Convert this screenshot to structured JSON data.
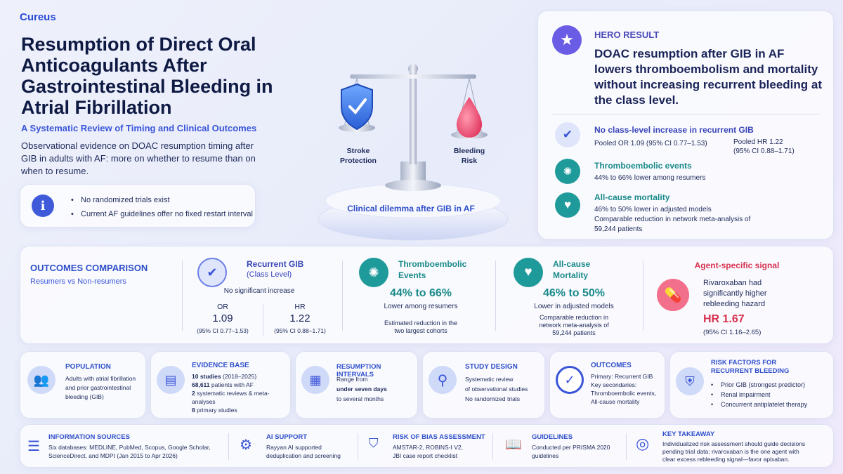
{
  "brand": "Cureus",
  "title": "Resumption of Direct Oral Anticoagulants After Gastrointestinal Bleeding in Atrial Fibrillation",
  "subtitle": "A Systematic Review of Timing and Clinical Outcomes",
  "intro": "Observational evidence on DOAC resumption timing after GIB in adults with AF: more on whether to resume than on when to resume.",
  "info_box": {
    "icon": "info-icon",
    "items": [
      "No randomized trials exist",
      "Current AF guidelines offer no fixed restart interval"
    ]
  },
  "scale": {
    "left_label_1": "Stroke",
    "left_label_2": "Protection",
    "right_label_1": "Bleeding",
    "right_label_2": "Risk",
    "caption": "Clinical dilemma after GIB in AF"
  },
  "hero": {
    "heading": "HERO RESULT",
    "statement": "DOAC resumption after GIB in AF lowers thromboembolism and mortality without increasing recurrent bleeding at the class level.",
    "items": [
      {
        "icon": "shield-check-icon",
        "title": "No class-level increase in recurrent GIB",
        "line1": "Pooled OR 1.09 (95% CI 0.77–1.53)",
        "aside1": "Pooled HR 1.22",
        "aside2": "(95% CI 0.88–1.71)"
      },
      {
        "icon": "brain-icon",
        "title": "Thromboembolic events",
        "line1": "44% to 66% lower among resumers"
      },
      {
        "icon": "heart-icon",
        "title": "All-cause mortality",
        "line1": "46% to 50% lower in adjusted models",
        "line2": "Comparable reduction in network meta-analysis of",
        "line3": "59,244 patients"
      }
    ]
  },
  "outcomes": {
    "heading": "OUTCOMES COMPARISON",
    "subheading": "Resumers vs Non-resumers",
    "recurrent": {
      "title1": "Recurrent GIB",
      "title2": "(Class Level)",
      "note": "No significant increase",
      "or_label": "OR",
      "or_value": "1.09",
      "or_ci": "(95% CI 0.77–1.53)",
      "hr_label": "HR",
      "hr_value": "1.22",
      "hr_ci": "(95% CI 0.88–1.71)"
    },
    "thrombo": {
      "title1": "Thromboembolic",
      "title2": "Events",
      "value": "44% to 66%",
      "note": "Lower among resumers",
      "sub1": "Estimated reduction in the",
      "sub2": "two largest cohorts"
    },
    "mortality": {
      "title1": "All-cause",
      "title2": "Mortality",
      "value": "46% to 50%",
      "note": "Lower in adjusted models",
      "sub1": "Comparable reduction in",
      "sub2": "network meta-analysis of",
      "sub3": "59,244 patients"
    },
    "agent": {
      "title": "Agent-specific signal",
      "text1": "Rivaroxaban had",
      "text2": "significantly higher",
      "text3": "rebleeding hazard",
      "value": "HR 1.67",
      "ci": "(95% CI 1.16–2.65)"
    }
  },
  "row3": {
    "population": {
      "title": "POPULATION",
      "l1": "Adults with atrial fibrillation",
      "l2": "and prior gastrointestinal",
      "l3": "bleeding (GIB)"
    },
    "evidence": {
      "title": "EVIDENCE BASE",
      "b1": "10 studies",
      "t1": " (2018–2025)",
      "b2": "68,611",
      "t2": " patients with AF",
      "b3": "2",
      "t3": " systematic reviews & meta-analyses",
      "b4": "8",
      "t4": " primary studies"
    },
    "intervals": {
      "title": "RESUMPTION INTERVALS",
      "l1": "Range from",
      "l2": "under seven days",
      "l3": "to several months"
    },
    "design": {
      "title": "STUDY DESIGN",
      "l1": "Systematic review",
      "l2": "of observational studies",
      "l3": "No randomized trials"
    },
    "outcomes": {
      "title": "OUTCOMES",
      "l1": "Primary: Recurrent GIB",
      "l2": "Key secondaries:",
      "l3": "Thromboembolic events,",
      "l4": "All-cause mortality"
    },
    "risk": {
      "title1": "RISK FACTORS FOR",
      "title2": "RECURRENT BLEEDING",
      "items": [
        "Prior GIB (strongest predictor)",
        "Renal impairment",
        "Concurrent antiplatelet therapy"
      ]
    }
  },
  "row4": {
    "sources": {
      "title": "INFORMATION SOURCES",
      "l1": "Six databases: MEDLINE, PubMed, Scopus, Google Scholar,",
      "l2": "ScienceDirect, and MDPI (Jan 2015 to Apr 2026)"
    },
    "ai": {
      "title": "AI SUPPORT",
      "l1": "Rayyan AI supported",
      "l2": "deduplication and screening"
    },
    "bias": {
      "title": "RISK OF BIAS ASSESSMENT",
      "l1": "AMSTAR-2, ROBINS-I V2,",
      "l2": "JBI case report checklist"
    },
    "guidelines": {
      "title": "GUIDELINES",
      "l1": "Conducted per PRISMA 2020",
      "l2": "guidelines"
    },
    "takeaway": {
      "title": "KEY TAKEAWAY",
      "l1": "Individualized risk assessment should guide decisions",
      "l2": "pending trial data; rivaroxaban is the one agent with",
      "l3": "clear excess rebleeding signal—favor apixaban."
    }
  },
  "colors": {
    "accent": "#3a55d8",
    "purple": "#6b5ce6",
    "teal": "#1f9a9a",
    "red": "#d8324f"
  }
}
